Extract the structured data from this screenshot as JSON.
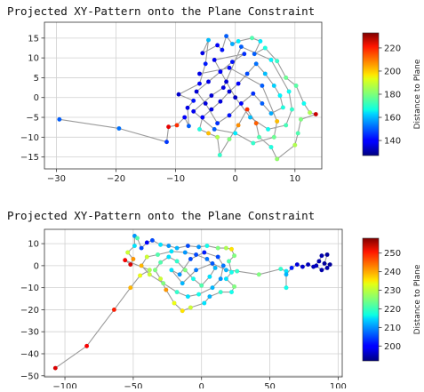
{
  "chart_data": [
    {
      "type": "scatter",
      "title": "Projected XY-Pattern onto the Plane Constraint",
      "xlabel": "",
      "ylabel": "",
      "xlim": [
        -32,
        14.5
      ],
      "ylim": [
        -18,
        19
      ],
      "xticks": [
        -30,
        -20,
        -10,
        0,
        10
      ],
      "yticks": [
        15,
        10,
        5,
        0,
        -5,
        -10,
        -15
      ],
      "grid": true,
      "connected": true,
      "colorbar": {
        "label": "Distance to Plane",
        "min": 127,
        "max": 233,
        "ticks": [
          140,
          160,
          180,
          200,
          220
        ]
      },
      "points": [
        {
          "x": -29.5,
          "y": -5.5,
          "c": 150
        },
        {
          "x": -19.5,
          "y": -7.8,
          "c": 152
        },
        {
          "x": -11.5,
          "y": -11.2,
          "c": 146
        },
        {
          "x": -11.2,
          "y": -7.4,
          "c": 222
        },
        {
          "x": -9.8,
          "y": -7.0,
          "c": 215
        },
        {
          "x": -8.5,
          "y": -5.0,
          "c": 140
        },
        {
          "x": -7.8,
          "y": -7.2,
          "c": 150
        },
        {
          "x": -8.0,
          "y": -2.6,
          "c": 138
        },
        {
          "x": -7.0,
          "y": -0.8,
          "c": 142
        },
        {
          "x": -9.5,
          "y": 0.8,
          "c": 135
        },
        {
          "x": -6.0,
          "y": 3.5,
          "c": 140
        },
        {
          "x": -5.0,
          "y": 8.5,
          "c": 143
        },
        {
          "x": -4.5,
          "y": 14.5,
          "c": 160
        },
        {
          "x": -5.5,
          "y": 11.2,
          "c": 138
        },
        {
          "x": -3.0,
          "y": 13.2,
          "c": 140
        },
        {
          "x": -2.2,
          "y": 12.0,
          "c": 142
        },
        {
          "x": -1.5,
          "y": 15.5,
          "c": 150
        },
        {
          "x": -0.5,
          "y": 13.5,
          "c": 158
        },
        {
          "x": 0.5,
          "y": 14.2,
          "c": 165
        },
        {
          "x": 2.8,
          "y": 15.0,
          "c": 175
        },
        {
          "x": 4.2,
          "y": 14.2,
          "c": 165
        },
        {
          "x": 3.2,
          "y": 11.0,
          "c": 150
        },
        {
          "x": 5.0,
          "y": 12.5,
          "c": 170
        },
        {
          "x": 7.0,
          "y": 9.2,
          "c": 172
        },
        {
          "x": 8.5,
          "y": 5.0,
          "c": 178
        },
        {
          "x": 10.2,
          "y": 3.0,
          "c": 176
        },
        {
          "x": 11.5,
          "y": -1.5,
          "c": 168
        },
        {
          "x": 12.5,
          "y": -3.8,
          "c": 185
        },
        {
          "x": 13.5,
          "y": -4.2,
          "c": 225
        },
        {
          "x": 11.0,
          "y": -5.5,
          "c": 180
        },
        {
          "x": 10.5,
          "y": -9.0,
          "c": 175
        },
        {
          "x": 10.0,
          "y": -12.0,
          "c": 185
        },
        {
          "x": 7.0,
          "y": -15.5,
          "c": 182
        },
        {
          "x": 6.0,
          "y": -12.5,
          "c": 170
        },
        {
          "x": 4.0,
          "y": -10.0,
          "c": 175
        },
        {
          "x": 3.5,
          "y": -6.5,
          "c": 210
        },
        {
          "x": 2.0,
          "y": -3.0,
          "c": 215
        },
        {
          "x": 0.5,
          "y": -7.0,
          "c": 205
        },
        {
          "x": -1.0,
          "y": -10.5,
          "c": 180
        },
        {
          "x": -2.6,
          "y": -14.5,
          "c": 172
        },
        {
          "x": -3.0,
          "y": -10.0,
          "c": 185
        },
        {
          "x": -4.5,
          "y": -9.0,
          "c": 200
        },
        {
          "x": -6.0,
          "y": -8.0,
          "c": 170
        },
        {
          "x": -5.5,
          "y": -5.0,
          "c": 140
        },
        {
          "x": -4.0,
          "y": -3.0,
          "c": 138
        },
        {
          "x": -2.5,
          "y": -1.0,
          "c": 137
        },
        {
          "x": -1.0,
          "y": 1.5,
          "c": 136
        },
        {
          "x": 0.5,
          "y": 3.5,
          "c": 140
        },
        {
          "x": 2.0,
          "y": 6.0,
          "c": 148
        },
        {
          "x": 3.5,
          "y": 8.5,
          "c": 152
        },
        {
          "x": 5.0,
          "y": 6.0,
          "c": 160
        },
        {
          "x": 6.5,
          "y": 3.0,
          "c": 162
        },
        {
          "x": 7.5,
          "y": 0.5,
          "c": 166
        },
        {
          "x": 8.0,
          "y": -2.5,
          "c": 170
        },
        {
          "x": 6.0,
          "y": -4.0,
          "c": 158
        },
        {
          "x": 4.5,
          "y": -1.5,
          "c": 150
        },
        {
          "x": 3.0,
          "y": 1.0,
          "c": 145
        },
        {
          "x": 1.0,
          "y": -1.5,
          "c": 140
        },
        {
          "x": -1.0,
          "y": -4.5,
          "c": 142
        },
        {
          "x": -3.0,
          "y": -6.5,
          "c": 145
        },
        {
          "x": -5.0,
          "y": -1.5,
          "c": 137
        },
        {
          "x": -6.5,
          "y": 1.5,
          "c": 136
        },
        {
          "x": -4.5,
          "y": 4.0,
          "c": 138
        },
        {
          "x": -2.5,
          "y": 6.5,
          "c": 140
        },
        {
          "x": -0.5,
          "y": 9.0,
          "c": 142
        },
        {
          "x": 1.5,
          "y": 11.0,
          "c": 145
        },
        {
          "x": -3.5,
          "y": 9.5,
          "c": 139
        },
        {
          "x": -1.5,
          "y": 4.0,
          "c": 136
        },
        {
          "x": 0.0,
          "y": 0.0,
          "c": 134
        },
        {
          "x": 2.5,
          "y": -5.0,
          "c": 160
        },
        {
          "x": 5.5,
          "y": -8.0,
          "c": 168
        },
        {
          "x": 8.5,
          "y": -7.0,
          "c": 174
        },
        {
          "x": 9.5,
          "y": -3.0,
          "c": 172
        },
        {
          "x": 9.0,
          "y": 1.5,
          "c": 168
        },
        {
          "x": 6.0,
          "y": 9.5,
          "c": 166
        },
        {
          "x": 1.0,
          "y": 12.8,
          "c": 150
        },
        {
          "x": -2.0,
          "y": 2.5,
          "c": 137
        },
        {
          "x": -4.0,
          "y": 0.5,
          "c": 136
        },
        {
          "x": -7.0,
          "y": -3.5,
          "c": 139
        },
        {
          "x": -3.5,
          "y": -8.0,
          "c": 150
        },
        {
          "x": 0.0,
          "y": -9.0,
          "c": 165
        },
        {
          "x": 3.0,
          "y": -11.5,
          "c": 172
        },
        {
          "x": 6.5,
          "y": -10.0,
          "c": 178
        },
        {
          "x": 7.0,
          "y": -6.0,
          "c": 200
        },
        {
          "x": 4.5,
          "y": 3.0,
          "c": 150
        },
        {
          "x": -1.0,
          "y": 7.5,
          "c": 141
        },
        {
          "x": -6.0,
          "y": 6.0,
          "c": 138
        }
      ]
    },
    {
      "type": "scatter",
      "title": "Projected XY-Pattern onto the Plane Constraint",
      "xlabel": "",
      "ylabel": "",
      "xlim": [
        -115,
        103
      ],
      "ylim": [
        -50.5,
        16.5
      ],
      "xticks": [
        -100,
        -50,
        0,
        50,
        100
      ],
      "yticks": [
        10,
        0,
        -10,
        -20,
        -30,
        -40,
        -50
      ],
      "grid": true,
      "connected": true,
      "colorbar": {
        "label": "Distance to Plane",
        "min": 192,
        "max": 258,
        "ticks": [
          200,
          210,
          220,
          230,
          240,
          250
        ]
      },
      "points": [
        {
          "x": -107,
          "y": -46.5,
          "c": 252
        },
        {
          "x": -84,
          "y": -36.5,
          "c": 250
        },
        {
          "x": -64,
          "y": -20.0,
          "c": 248
        },
        {
          "x": -52,
          "y": -10.0,
          "c": 238
        },
        {
          "x": -45,
          "y": -4.5,
          "c": 232
        },
        {
          "x": -38,
          "y": -2.0,
          "c": 228
        },
        {
          "x": -56,
          "y": 2.5,
          "c": 250
        },
        {
          "x": -52,
          "y": 0.5,
          "c": 252
        },
        {
          "x": -50,
          "y": 3.0,
          "c": 240
        },
        {
          "x": -54,
          "y": 6.0,
          "c": 230
        },
        {
          "x": -49,
          "y": 9.0,
          "c": 215
        },
        {
          "x": -49,
          "y": 13.5,
          "c": 210
        },
        {
          "x": -47,
          "y": 12.5,
          "c": 222
        },
        {
          "x": -44,
          "y": 8.0,
          "c": 205
        },
        {
          "x": -40,
          "y": 10.5,
          "c": 200
        },
        {
          "x": -36,
          "y": 11.5,
          "c": 205
        },
        {
          "x": -30,
          "y": 9.5,
          "c": 215
        },
        {
          "x": -24,
          "y": 9.0,
          "c": 210
        },
        {
          "x": -18,
          "y": 8.0,
          "c": 212
        },
        {
          "x": -10,
          "y": 9.0,
          "c": 205
        },
        {
          "x": -2,
          "y": 8.5,
          "c": 210
        },
        {
          "x": 4,
          "y": 9.0,
          "c": 218
        },
        {
          "x": 12,
          "y": 8.0,
          "c": 225
        },
        {
          "x": 18,
          "y": 8.0,
          "c": 228
        },
        {
          "x": 22,
          "y": 7.5,
          "c": 235
        },
        {
          "x": 24,
          "y": 4.5,
          "c": 225
        },
        {
          "x": 20,
          "y": 2.0,
          "c": 222
        },
        {
          "x": 22,
          "y": -3.0,
          "c": 218
        },
        {
          "x": 18,
          "y": -6.0,
          "c": 215
        },
        {
          "x": 24,
          "y": -9.5,
          "c": 225
        },
        {
          "x": 22,
          "y": -12.0,
          "c": 218
        },
        {
          "x": 14,
          "y": -12.0,
          "c": 220
        },
        {
          "x": 6,
          "y": -14.0,
          "c": 212
        },
        {
          "x": 2,
          "y": -17.0,
          "c": 215
        },
        {
          "x": -8,
          "y": -19.0,
          "c": 230
        },
        {
          "x": -14,
          "y": -20.5,
          "c": 235
        },
        {
          "x": -20,
          "y": -17.0,
          "c": 232
        },
        {
          "x": -26,
          "y": -11.0,
          "c": 240
        },
        {
          "x": -30,
          "y": -6.0,
          "c": 230
        },
        {
          "x": -34,
          "y": -2.0,
          "c": 225
        },
        {
          "x": -30,
          "y": 1.5,
          "c": 222
        },
        {
          "x": -24,
          "y": 4.0,
          "c": 215
        },
        {
          "x": -18,
          "y": 2.0,
          "c": 220
        },
        {
          "x": -12,
          "y": -2.0,
          "c": 225
        },
        {
          "x": -6,
          "y": -6.0,
          "c": 218
        },
        {
          "x": 0,
          "y": -9.0,
          "c": 222
        },
        {
          "x": 6,
          "y": -5.0,
          "c": 215
        },
        {
          "x": 10,
          "y": -1.0,
          "c": 212
        },
        {
          "x": 4,
          "y": 3.0,
          "c": 208
        },
        {
          "x": -4,
          "y": 5.0,
          "c": 205
        },
        {
          "x": -12,
          "y": 6.0,
          "c": 210
        },
        {
          "x": -22,
          "y": 6.5,
          "c": 215
        },
        {
          "x": -32,
          "y": 5.0,
          "c": 222
        },
        {
          "x": -40,
          "y": 4.0,
          "c": 230
        },
        {
          "x": -44,
          "y": 0.0,
          "c": 238
        },
        {
          "x": -38,
          "y": -4.0,
          "c": 230
        },
        {
          "x": -28,
          "y": -8.0,
          "c": 225
        },
        {
          "x": -18,
          "y": -12.0,
          "c": 220
        },
        {
          "x": -10,
          "y": -14.0,
          "c": 215
        },
        {
          "x": -2,
          "y": -13.0,
          "c": 218
        },
        {
          "x": 8,
          "y": -10.0,
          "c": 212
        },
        {
          "x": 14,
          "y": -6.0,
          "c": 210
        },
        {
          "x": 16,
          "y": 0.0,
          "c": 208
        },
        {
          "x": 12,
          "y": 4.0,
          "c": 205
        },
        {
          "x": 2,
          "y": 6.0,
          "c": 202
        },
        {
          "x": -8,
          "y": 3.0,
          "c": 205
        },
        {
          "x": -16,
          "y": -4.0,
          "c": 210
        },
        {
          "x": -22,
          "y": -2.0,
          "c": 215
        },
        {
          "x": -14,
          "y": -8.0,
          "c": 212
        },
        {
          "x": -4,
          "y": -2.0,
          "c": 208
        },
        {
          "x": 8,
          "y": 1.0,
          "c": 206
        },
        {
          "x": 18,
          "y": -2.0,
          "c": 212
        },
        {
          "x": 26,
          "y": -2.5,
          "c": 220
        },
        {
          "x": 42,
          "y": -4.0,
          "c": 225
        },
        {
          "x": 58,
          "y": -1.5,
          "c": 220
        },
        {
          "x": 62,
          "y": -2.5,
          "c": 215
        },
        {
          "x": 62,
          "y": -10.0,
          "c": 218
        },
        {
          "x": 62,
          "y": -4.0,
          "c": 212
        },
        {
          "x": 66,
          "y": -1.0,
          "c": 202
        },
        {
          "x": 70,
          "y": 0.5,
          "c": 198
        },
        {
          "x": 74,
          "y": -0.5,
          "c": 197
        },
        {
          "x": 78,
          "y": 0.5,
          "c": 196
        },
        {
          "x": 82,
          "y": -0.5,
          "c": 196
        },
        {
          "x": 86,
          "y": 2.0,
          "c": 195
        },
        {
          "x": 88,
          "y": 4.5,
          "c": 195
        },
        {
          "x": 92,
          "y": 5.0,
          "c": 194
        },
        {
          "x": 90,
          "y": 1.0,
          "c": 194
        },
        {
          "x": 94,
          "y": 0.5,
          "c": 194
        },
        {
          "x": 92,
          "y": -1.0,
          "c": 195
        },
        {
          "x": 88,
          "y": -2.0,
          "c": 195
        },
        {
          "x": 84,
          "y": 0.0,
          "c": 196
        }
      ]
    }
  ]
}
